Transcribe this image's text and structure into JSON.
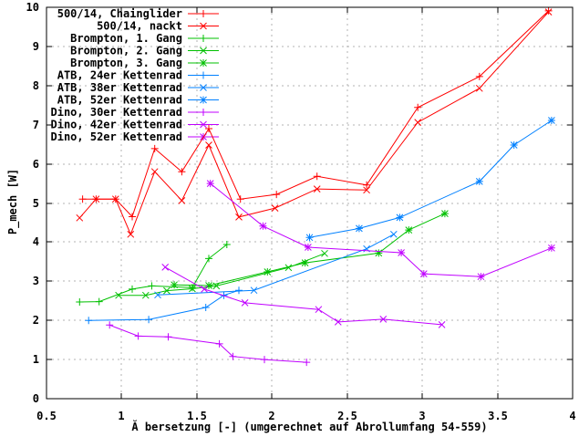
{
  "chart_data": {
    "type": "line",
    "title": "",
    "xlabel": "Ă bersetzung [-] (umgerechnet auf Abrollumfang 54-559)",
    "ylabel": "P_mech [W]",
    "xlim": [
      0.5,
      4
    ],
    "ylim": [
      0,
      10
    ],
    "x_ticks": [
      0.5,
      1,
      1.5,
      2,
      2.5,
      3,
      3.5,
      4
    ],
    "x_tick_labels": [
      "0.5",
      "1",
      "1.5",
      "2",
      "2.5",
      "3",
      "3.5",
      "4"
    ],
    "y_ticks": [
      0,
      1,
      2,
      3,
      4,
      5,
      6,
      7,
      8,
      9,
      10
    ],
    "y_tick_labels": [
      "0",
      "1",
      "2",
      "3",
      "4",
      "5",
      "6",
      "7",
      "8",
      "9",
      "10"
    ],
    "grid": true,
    "legend_position": "top-left",
    "background": "#ffffff",
    "grid_color": "#b3b3b3",
    "frame_color": "#000000",
    "series": [
      {
        "name": "500/14, Chainglider",
        "color": "#ff0000",
        "marker": "plus",
        "points": [
          [
            0.74,
            5.1
          ],
          [
            0.83,
            5.1
          ],
          [
            0.96,
            5.1
          ],
          [
            1.07,
            4.65
          ],
          [
            1.22,
            6.39
          ],
          [
            1.4,
            5.8
          ],
          [
            1.58,
            6.9
          ],
          [
            1.79,
            5.1
          ],
          [
            2.03,
            5.22
          ],
          [
            2.3,
            5.68
          ],
          [
            2.63,
            5.46
          ],
          [
            2.97,
            7.44
          ],
          [
            3.38,
            8.23
          ],
          [
            3.84,
            9.91
          ]
        ]
      },
      {
        "name": "500/14, nackt",
        "color": "#ff0000",
        "marker": "cross",
        "points": [
          [
            0.72,
            4.62
          ],
          [
            0.83,
            5.1
          ],
          [
            0.96,
            5.1
          ],
          [
            1.06,
            4.2
          ],
          [
            1.22,
            5.8
          ],
          [
            1.4,
            5.06
          ],
          [
            1.58,
            6.48
          ],
          [
            1.78,
            4.64
          ],
          [
            2.02,
            4.87
          ],
          [
            2.3,
            5.36
          ],
          [
            2.63,
            5.33
          ],
          [
            2.97,
            7.06
          ],
          [
            3.38,
            7.93
          ],
          [
            3.84,
            9.88
          ]
        ]
      },
      {
        "name": "Brompton, 1. Gang",
        "color": "#00c000",
        "marker": "plus",
        "points": [
          [
            0.72,
            2.47
          ],
          [
            0.85,
            2.48
          ],
          [
            1.07,
            2.8
          ],
          [
            1.2,
            2.88
          ],
          [
            1.47,
            2.84
          ],
          [
            1.58,
            3.58
          ],
          [
            1.7,
            3.94
          ]
        ]
      },
      {
        "name": "Brompton, 2. Gang",
        "color": "#00c000",
        "marker": "cross",
        "points": [
          [
            0.98,
            2.64
          ],
          [
            1.16,
            2.64
          ],
          [
            1.3,
            2.76
          ],
          [
            1.47,
            2.81
          ],
          [
            1.63,
            2.88
          ],
          [
            2.11,
            3.35
          ],
          [
            2.35,
            3.71
          ]
        ]
      },
      {
        "name": "Brompton, 3. Gang",
        "color": "#00c000",
        "marker": "star",
        "points": [
          [
            1.35,
            2.91
          ],
          [
            1.58,
            2.89
          ],
          [
            1.97,
            3.24
          ],
          [
            2.22,
            3.47
          ],
          [
            2.71,
            3.72
          ],
          [
            2.91,
            4.31
          ],
          [
            3.15,
            4.73
          ]
        ]
      },
      {
        "name": "ATB, 24er Kettenrad",
        "color": "#0080ff",
        "marker": "plus",
        "points": [
          [
            0.78,
            2.0
          ],
          [
            1.18,
            2.02
          ],
          [
            1.56,
            2.33
          ],
          [
            1.68,
            2.64
          ],
          [
            1.78,
            2.77
          ]
        ]
      },
      {
        "name": "ATB, 38er Kettenrad",
        "color": "#0080ff",
        "marker": "cross",
        "points": [
          [
            1.24,
            2.65
          ],
          [
            1.88,
            2.77
          ],
          [
            2.63,
            3.83
          ],
          [
            2.81,
            4.2
          ]
        ]
      },
      {
        "name": "ATB, 52er Kettenrad",
        "color": "#0080ff",
        "marker": "star",
        "points": [
          [
            2.25,
            4.12
          ],
          [
            2.58,
            4.35
          ],
          [
            2.85,
            4.63
          ],
          [
            3.38,
            5.55
          ],
          [
            3.61,
            6.48
          ],
          [
            3.86,
            7.11
          ]
        ]
      },
      {
        "name": "Dino, 30er Kettenrad",
        "color": "#c000ff",
        "marker": "plus",
        "points": [
          [
            0.92,
            1.88
          ],
          [
            1.11,
            1.6
          ],
          [
            1.31,
            1.58
          ],
          [
            1.65,
            1.4
          ],
          [
            1.74,
            1.08
          ],
          [
            1.95,
            1.0
          ],
          [
            2.23,
            0.93
          ]
        ]
      },
      {
        "name": "Dino, 42er Kettenrad",
        "color": "#c000ff",
        "marker": "cross",
        "points": [
          [
            1.29,
            3.36
          ],
          [
            1.55,
            2.8
          ],
          [
            1.82,
            2.45
          ],
          [
            2.31,
            2.28
          ],
          [
            2.44,
            1.96
          ],
          [
            2.74,
            2.03
          ],
          [
            3.13,
            1.89
          ]
        ]
      },
      {
        "name": "Dino, 52er Kettenrad",
        "color": "#c000ff",
        "marker": "star",
        "points": [
          [
            1.59,
            5.5
          ],
          [
            1.94,
            4.41
          ],
          [
            2.24,
            3.87
          ],
          [
            2.86,
            3.73
          ],
          [
            3.01,
            3.19
          ],
          [
            3.39,
            3.12
          ],
          [
            3.86,
            3.85
          ]
        ]
      }
    ]
  }
}
